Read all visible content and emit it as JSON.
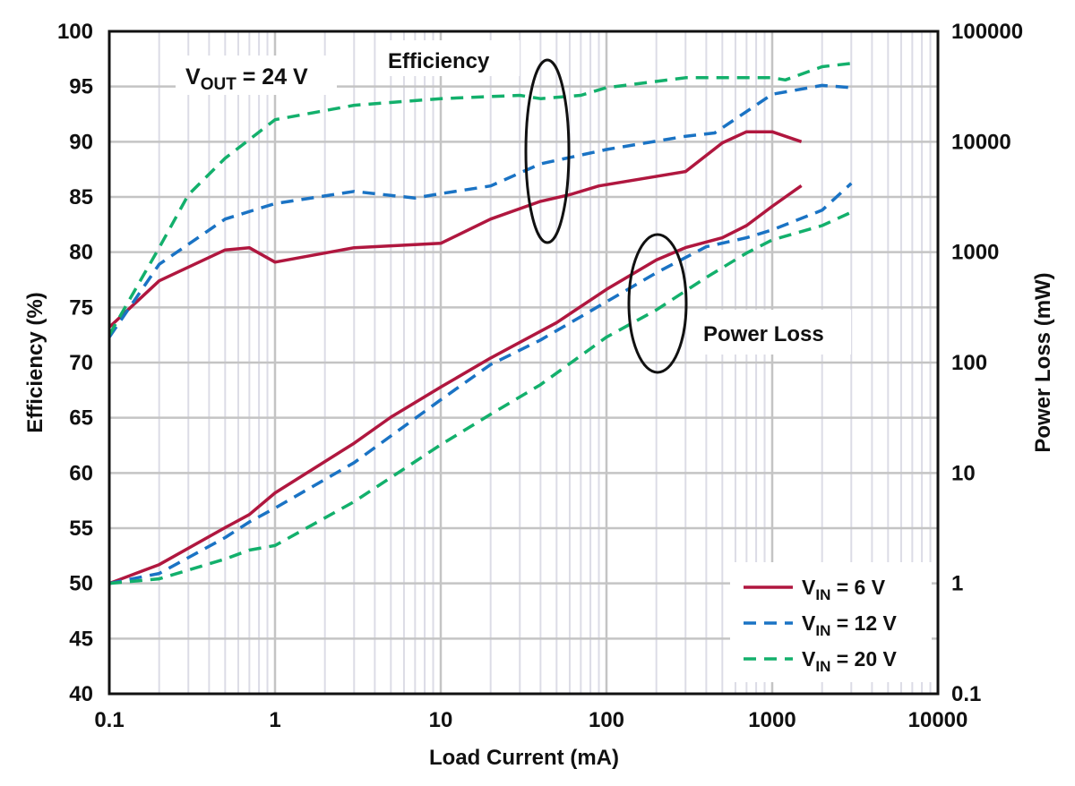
{
  "chart_data": {
    "type": "line",
    "title": "",
    "xlabel": "Load Current (mA)",
    "ylabel": "Efficiency (%)",
    "y2label": "Power Loss (mW)",
    "xscale": "log",
    "xlim": [
      0.1,
      10000
    ],
    "ylim": [
      40,
      100
    ],
    "y2scale": "log",
    "y2lim": [
      0.1,
      100000
    ],
    "grid": true,
    "legend_position": "bottom-right",
    "x_ticks": [
      "0.1",
      "1",
      "10",
      "100",
      "1000",
      "10000"
    ],
    "y_ticks": [
      "40",
      "45",
      "50",
      "55",
      "60",
      "65",
      "70",
      "75",
      "80",
      "85",
      "90",
      "95",
      "100"
    ],
    "y2_ticks": [
      "0.1",
      "1",
      "10",
      "100",
      "1000",
      "10000",
      "100000"
    ],
    "annotations": {
      "vout": {
        "main": "V",
        "sub": "OUT",
        "rest": " = 24 V"
      },
      "efficiency": "Efficiency",
      "power_loss": "Power Loss"
    },
    "series": [
      {
        "name": "VIN = 6 V",
        "label_main": "V",
        "label_sub": "IN",
        "label_rest": " = 6 V",
        "color": "#b0173f",
        "dash": "solid",
        "efficiency": {
          "x": [
            0.1,
            0.2,
            0.5,
            0.7,
            1,
            3,
            10,
            20,
            40,
            60,
            90,
            300,
            500,
            700,
            1000,
            1500
          ],
          "y": [
            73.2,
            77.4,
            80.2,
            80.4,
            79.1,
            80.4,
            80.8,
            83.0,
            84.6,
            85.2,
            86.0,
            87.3,
            89.9,
            90.9,
            90.9,
            90.0
          ]
        },
        "power_loss": {
          "x": [
            0.1,
            0.2,
            0.5,
            0.7,
            1,
            3,
            5,
            10,
            20,
            50,
            100,
            200,
            300,
            500,
            700,
            1000,
            1500
          ],
          "y": [
            1.0,
            1.48,
            3.2,
            4.2,
            6.6,
            18.6,
            32,
            60,
            110,
            230,
            460,
            850,
            1100,
            1350,
            1740,
            2600,
            4000
          ]
        }
      },
      {
        "name": "VIN = 12 V",
        "label_main": "V",
        "label_sub": "IN",
        "label_rest": " = 12 V",
        "color": "#1a73c4",
        "dash": "dashed",
        "efficiency": {
          "x": [
            0.1,
            0.2,
            0.5,
            1,
            3,
            7,
            10,
            20,
            40,
            100,
            300,
            450,
            1000,
            2000,
            3000
          ],
          "y": [
            72.3,
            78.9,
            83.0,
            84.4,
            85.5,
            84.9,
            85.3,
            86.0,
            88.0,
            89.3,
            90.5,
            90.8,
            94.3,
            95.1,
            94.9
          ]
        },
        "power_loss": {
          "x": [
            0.1,
            0.2,
            0.5,
            0.7,
            1,
            3,
            10,
            20,
            40,
            100,
            200,
            400,
            700,
            1000,
            2000,
            3000
          ],
          "y": [
            1.0,
            1.23,
            2.6,
            3.6,
            4.8,
            12.4,
            46,
            96,
            160,
            355,
            650,
            1120,
            1350,
            1590,
            2400,
            4200
          ]
        }
      },
      {
        "name": "VIN = 20 V",
        "label_main": "V",
        "label_sub": "IN",
        "label_rest": " = 20 V",
        "color": "#13b06c",
        "dash": "dashed",
        "efficiency": {
          "x": [
            0.1,
            0.2,
            0.3,
            0.5,
            0.7,
            1,
            3,
            10,
            30,
            40,
            70,
            100,
            300,
            1000,
            1200,
            2000,
            3000
          ],
          "y": [
            72.5,
            80.4,
            85.2,
            88.5,
            90.2,
            92.0,
            93.3,
            93.9,
            94.2,
            93.9,
            94.2,
            94.9,
            95.8,
            95.8,
            95.6,
            96.8,
            97.1
          ]
        },
        "power_loss": {
          "x": [
            0.1,
            0.2,
            0.5,
            0.7,
            1,
            3,
            10,
            20,
            40,
            100,
            200,
            400,
            700,
            1000,
            2000,
            3000
          ],
          "y": [
            1.0,
            1.1,
            1.66,
            2.0,
            2.2,
            5.5,
            18,
            34,
            63,
            170,
            300,
            590,
            980,
            1290,
            1740,
            2300
          ]
        }
      }
    ]
  }
}
